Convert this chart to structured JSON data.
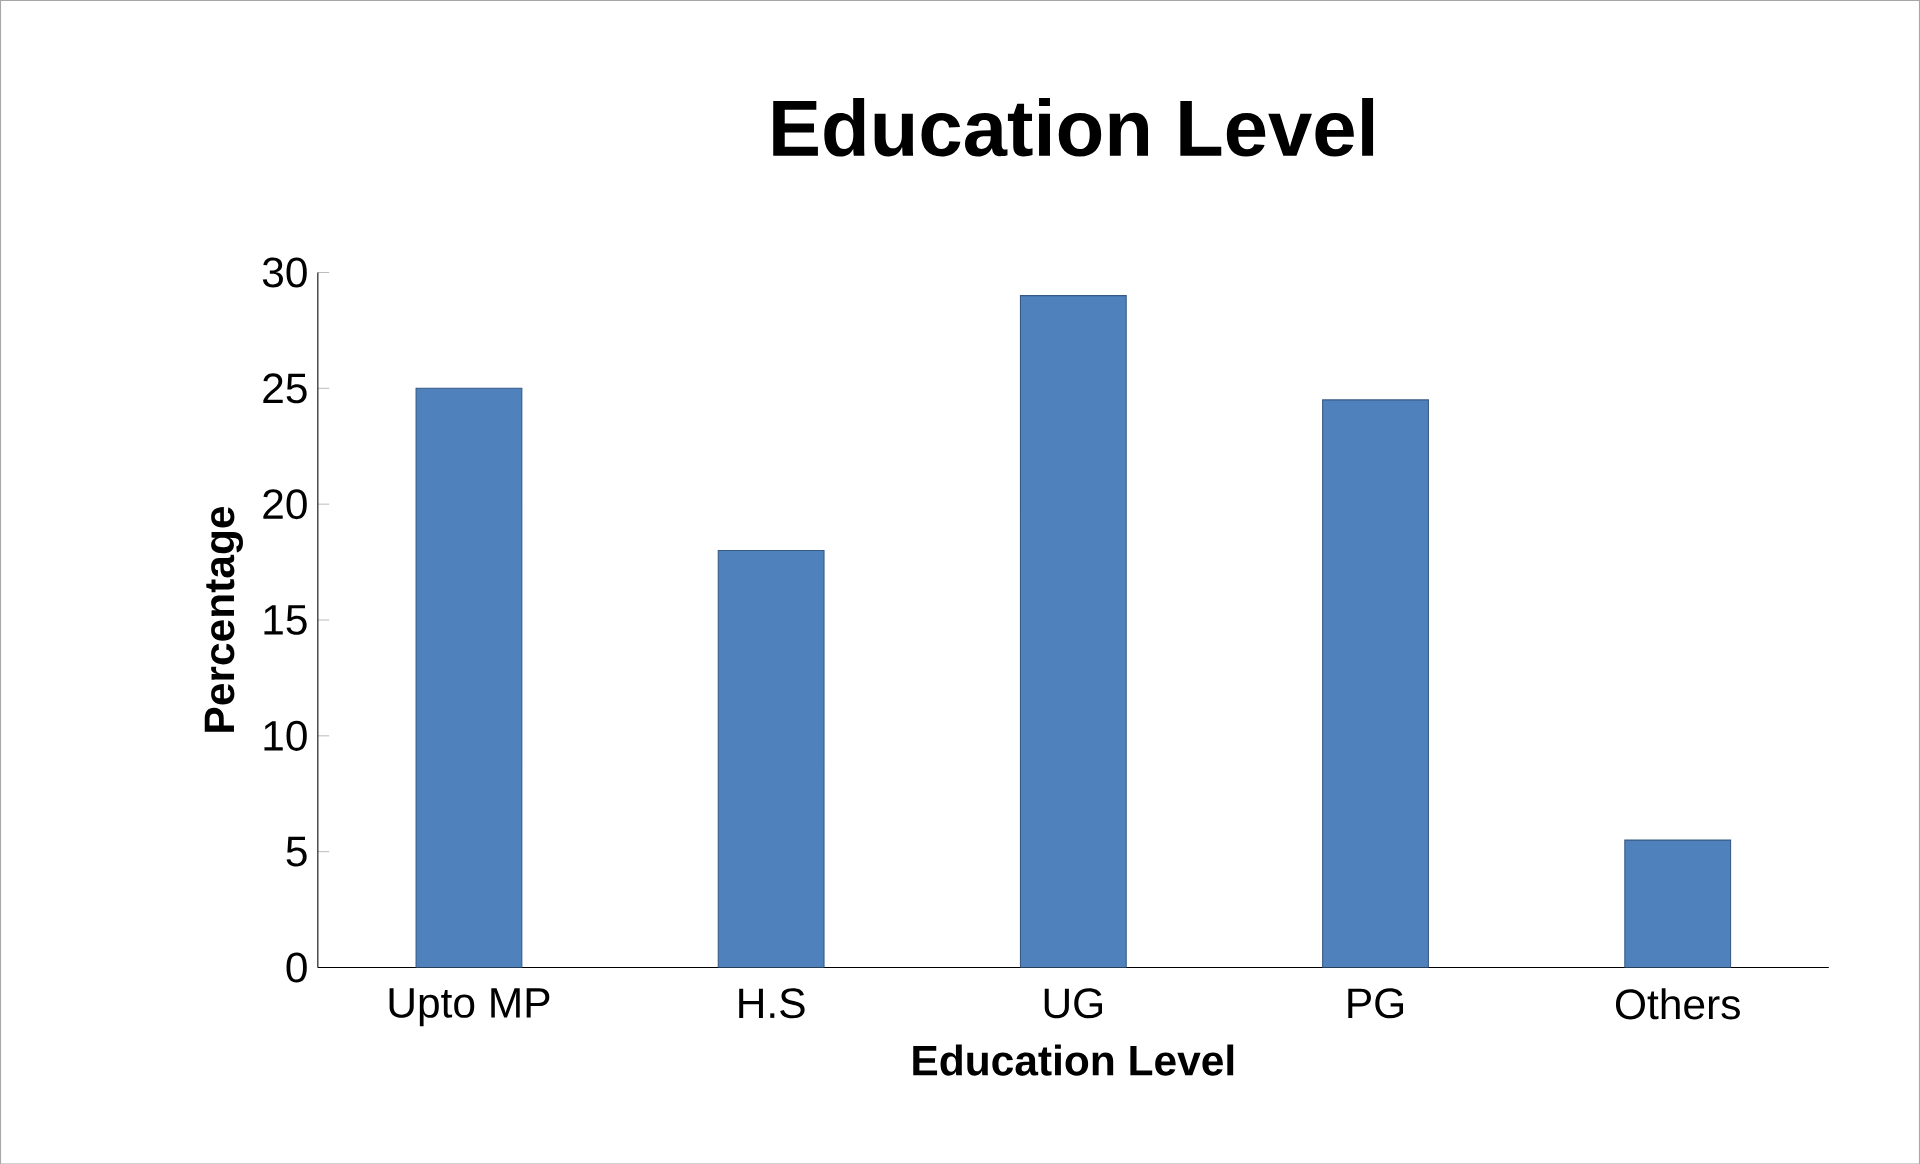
{
  "chart_data": {
    "type": "bar",
    "title": "Education Level",
    "xlabel": "Education Level",
    "ylabel": "Percentage",
    "categories": [
      "Upto MP",
      "H.S",
      "UG",
      "PG",
      "Others"
    ],
    "values": [
      25,
      18,
      29,
      24.5,
      5.5
    ],
    "color": "#4f81bd",
    "ylim": [
      0,
      30
    ],
    "yticks": [
      0,
      5,
      10,
      15,
      20,
      25,
      30
    ]
  }
}
